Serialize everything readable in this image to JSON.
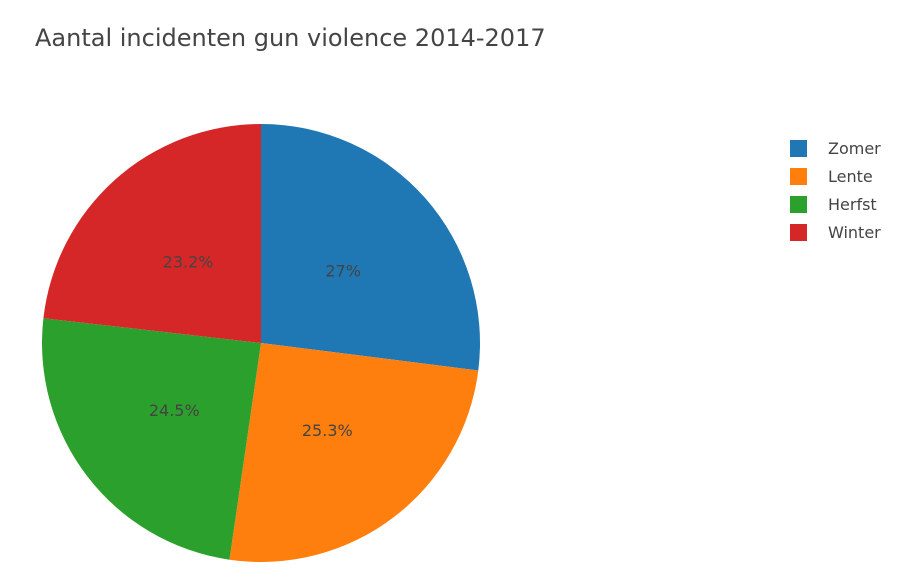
{
  "chart_data": {
    "type": "pie",
    "title": "Aantal incidenten gun violence 2014-2017",
    "slices": [
      {
        "label": "Zomer",
        "value": 27.0,
        "text": "27%",
        "color": "#1f77b4"
      },
      {
        "label": "Lente",
        "value": 25.3,
        "text": "25.3%",
        "color": "#ff7f0e"
      },
      {
        "label": "Herfst",
        "value": 24.5,
        "text": "24.5%",
        "color": "#2ca02c"
      },
      {
        "label": "Winter",
        "value": 23.2,
        "text": "23.2%",
        "color": "#d62728"
      }
    ],
    "legend_placement": "top-right"
  }
}
